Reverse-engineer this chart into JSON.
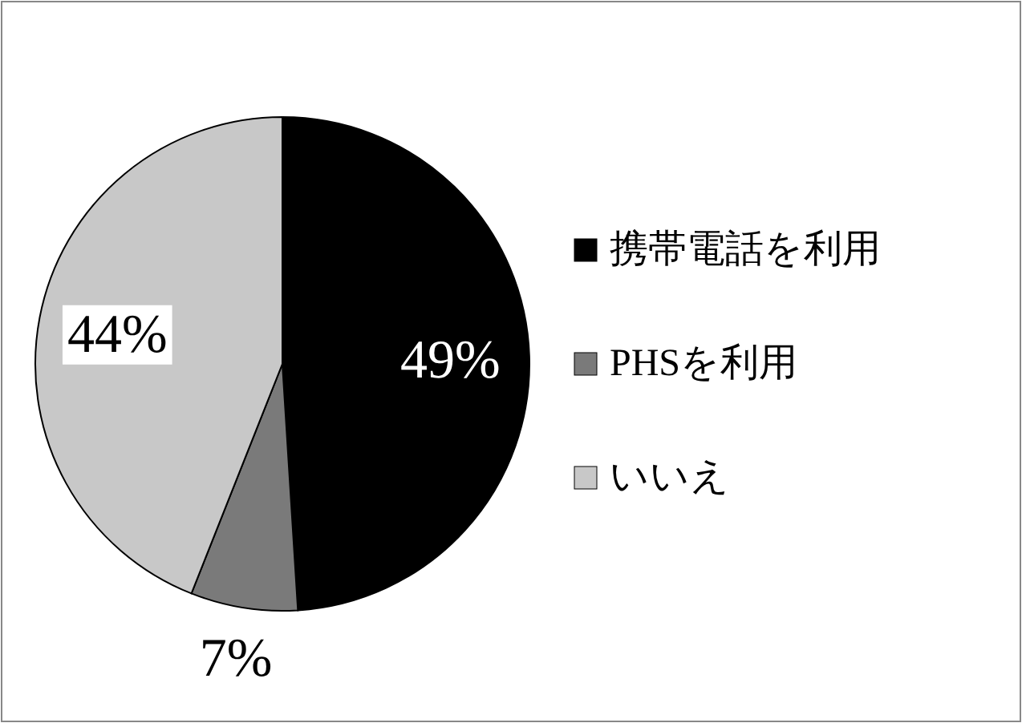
{
  "chart_data": {
    "type": "pie",
    "categories": [
      "携帯電話を利用",
      "PHSを利用",
      "いいえ"
    ],
    "values": [
      49,
      7,
      44
    ],
    "colors": [
      "#000000",
      "#7a7a7a",
      "#c8c8c8"
    ],
    "value_labels": [
      "49%",
      "7%",
      "44%"
    ],
    "legend": "right"
  }
}
